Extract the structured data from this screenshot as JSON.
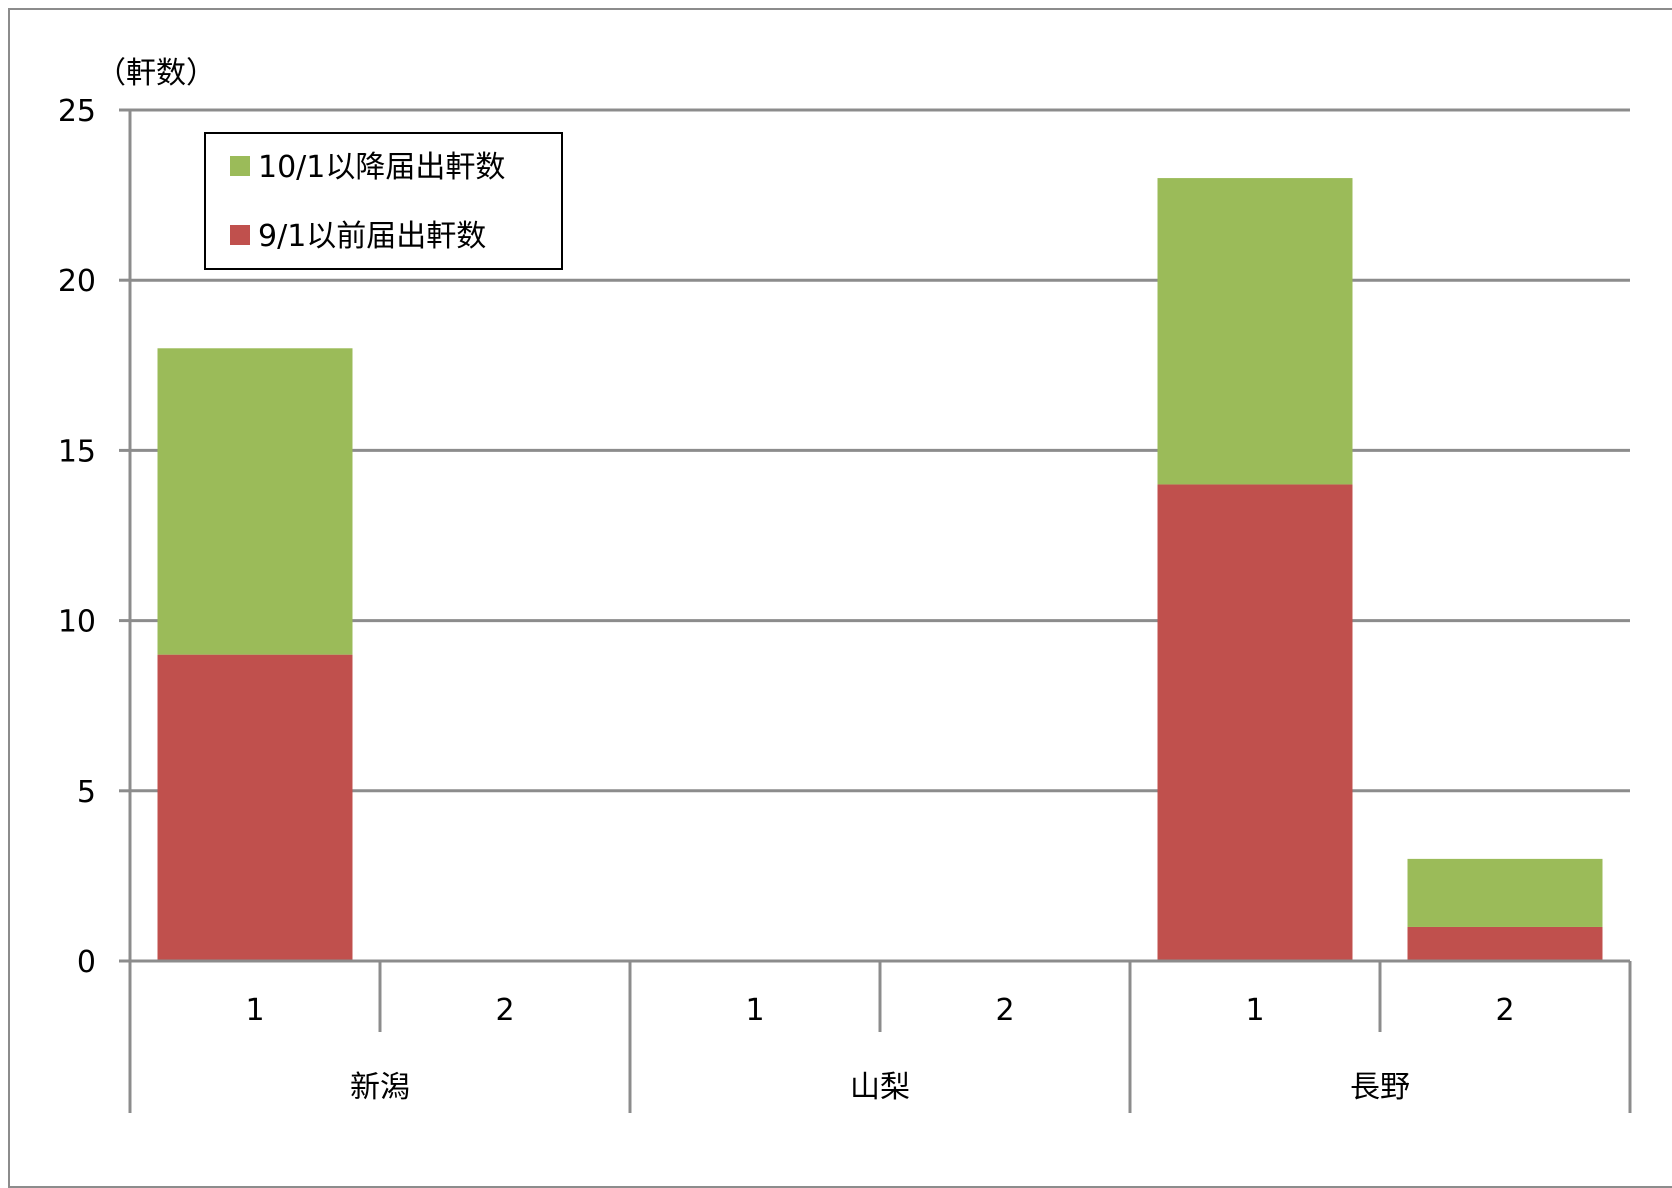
{
  "chart_data": {
    "type": "bar",
    "stacked": true,
    "y_unit_label": "（軒数）",
    "ylim": [
      0,
      25
    ],
    "yticks": [
      0,
      5,
      10,
      15,
      20,
      25
    ],
    "grid": true,
    "legend_position": "top-left",
    "groups": [
      {
        "label": "新潟",
        "categories": [
          "1",
          "2"
        ]
      },
      {
        "label": "山梨",
        "categories": [
          "1",
          "2"
        ]
      },
      {
        "label": "長野",
        "categories": [
          "1",
          "2"
        ]
      }
    ],
    "series": [
      {
        "name": "9/1以前届出軒数",
        "color": "#C0504D",
        "values": [
          9,
          0,
          0,
          0,
          14,
          1
        ]
      },
      {
        "name": "10/1以降届出軒数",
        "color": "#9BBB59",
        "values": [
          9,
          0,
          0,
          0,
          9,
          2
        ]
      }
    ],
    "legend_order": [
      1,
      0
    ]
  }
}
